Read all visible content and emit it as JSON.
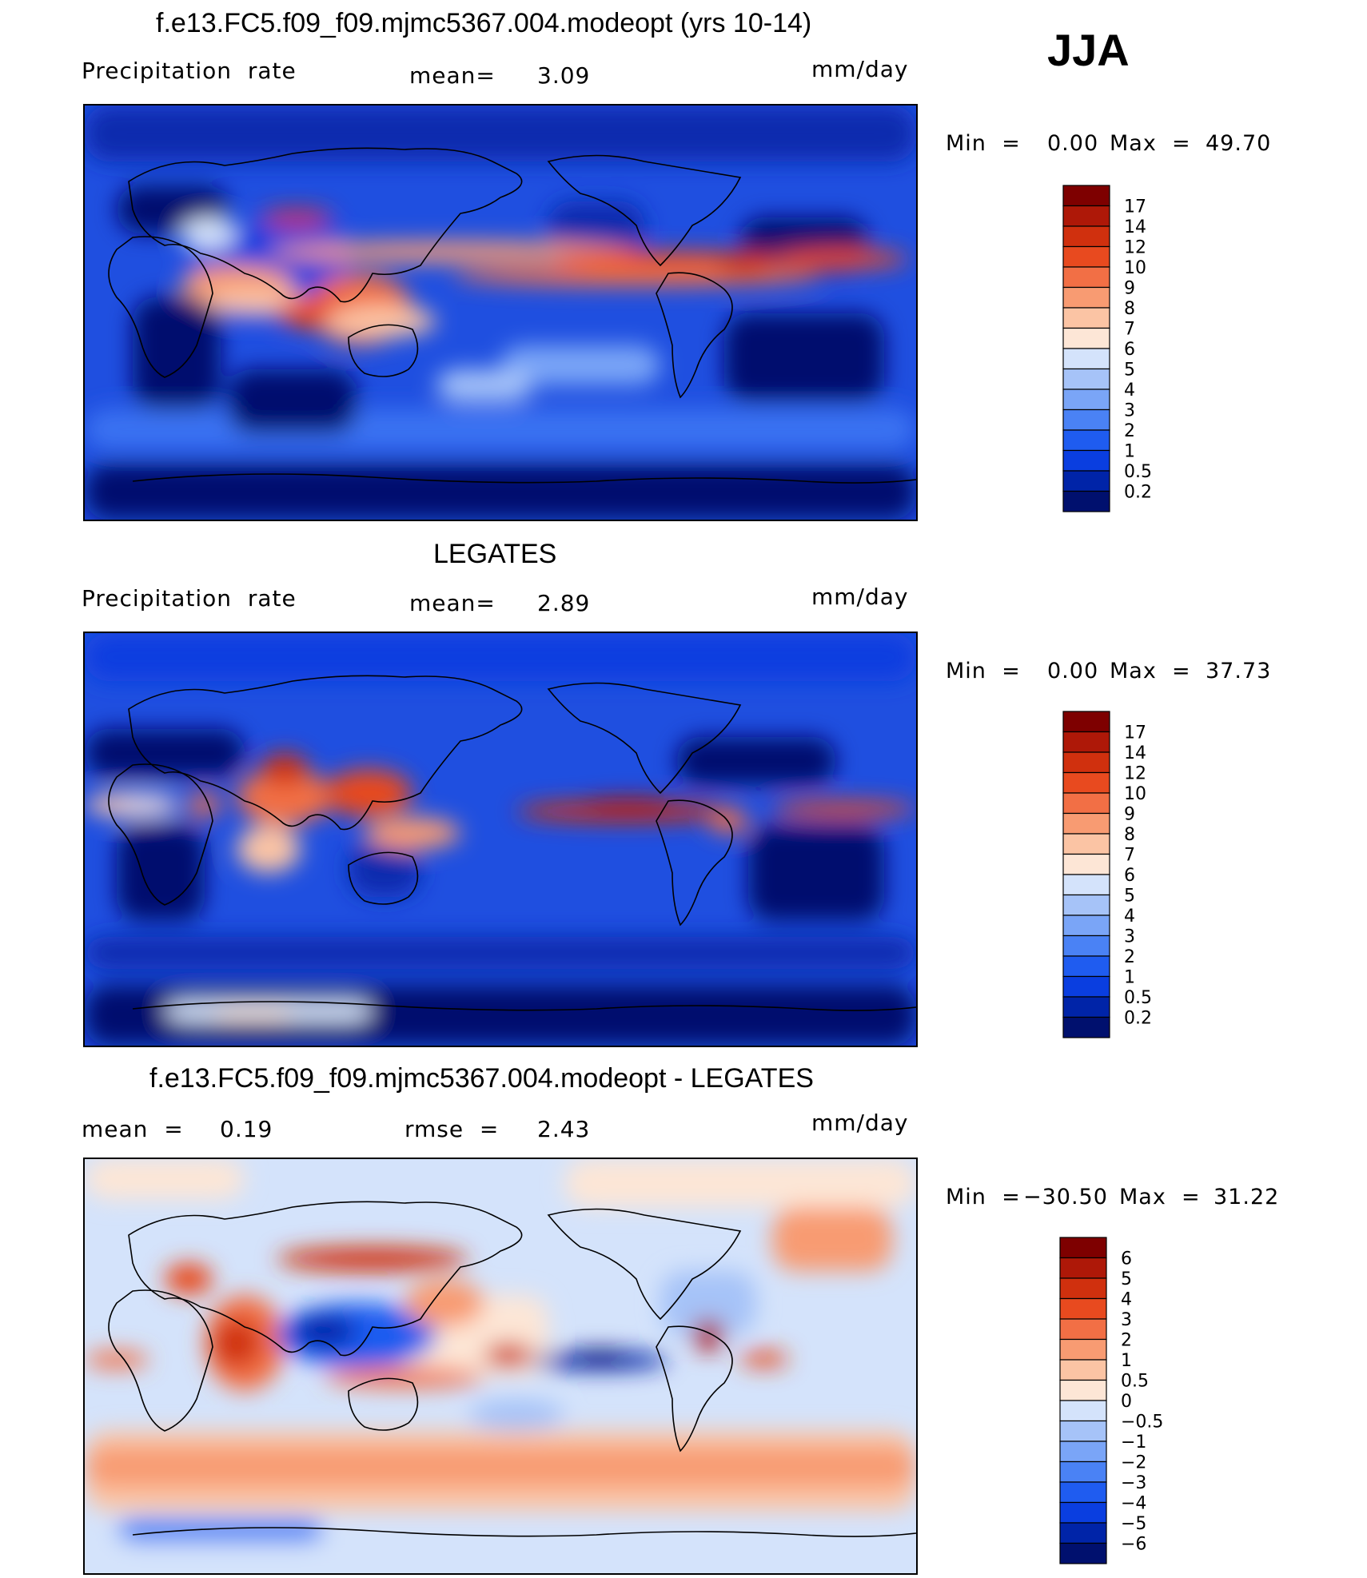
{
  "season": "JJA",
  "colors": {
    "abs_scale": [
      "#00106e",
      "#0024a8",
      "#0a3ee0",
      "#1f5cf0",
      "#4a82f5",
      "#7aa5f7",
      "#a6c3f8",
      "#d4e3fb",
      "#fde6d6",
      "#fbc4a4",
      "#f89b72",
      "#f26f45",
      "#e84a1f",
      "#d0300e",
      "#ae1808",
      "#7e0000"
    ],
    "diff_scale": [
      "#00106e",
      "#0024a8",
      "#0a3ee0",
      "#1f5cf0",
      "#4a82f5",
      "#7aa5f7",
      "#a6c3f8",
      "#d4e3fb",
      "#fde6d6",
      "#fbc4a4",
      "#f89b72",
      "#f26f45",
      "#e84a1f",
      "#d0300e",
      "#ae1808",
      "#7e0000"
    ]
  },
  "panels": [
    {
      "title": "f.e13.FC5.f09_f09.mjmc5367.004.modeopt (yrs 10-14)",
      "left_label": "Precipitation  rate",
      "center_label": "mean=",
      "center_value": "3.09",
      "units": "mm/day",
      "min_label": "Min  =",
      "min_value": "0.00",
      "max_label": "Max  =",
      "max_value": "49.70"
    },
    {
      "title": "LEGATES",
      "left_label": "Precipitation  rate",
      "center_label": "mean=",
      "center_value": "2.89",
      "units": "mm/day",
      "min_label": "Min  =",
      "min_value": "0.00",
      "max_label": "Max  =",
      "max_value": "37.73"
    },
    {
      "title": "f.e13.FC5.f09_f09.mjmc5367.004.modeopt - LEGATES",
      "left_label": "mean  =",
      "left_value": "0.19",
      "center_label": "rmse  =",
      "center_value": "2.43",
      "units": "mm/day",
      "min_label": "Min  =",
      "min_value": "−30.50",
      "max_label": "Max  =",
      "max_value": "31.22"
    }
  ],
  "chart_data": [
    {
      "type": "heatmap",
      "title": "f.e13.FC5.f09_f09.mjmc5367.004.modeopt (yrs 10-14)",
      "variable": "Precipitation rate",
      "units": "mm/day",
      "mean": 3.09,
      "min": 0.0,
      "max": 49.7,
      "colorbar_levels": [
        "17",
        "14",
        "12",
        "10",
        "9",
        "8",
        "7",
        "6",
        "5",
        "4",
        "3",
        "2",
        "1",
        "0.5",
        "0.2"
      ]
    },
    {
      "type": "heatmap",
      "title": "LEGATES",
      "variable": "Precipitation rate",
      "units": "mm/day",
      "mean": 2.89,
      "min": 0.0,
      "max": 37.73,
      "colorbar_levels": [
        "17",
        "14",
        "12",
        "10",
        "9",
        "8",
        "7",
        "6",
        "5",
        "4",
        "3",
        "2",
        "1",
        "0.5",
        "0.2"
      ]
    },
    {
      "type": "heatmap",
      "title": "f.e13.FC5.f09_f09.mjmc5367.004.modeopt - LEGATES",
      "units": "mm/day",
      "mean": 0.19,
      "rmse": 2.43,
      "min": -30.5,
      "max": 31.22,
      "colorbar_levels": [
        "6",
        "5",
        "4",
        "3",
        "2",
        "1",
        "0.5",
        "0",
        "−0.5",
        "−1",
        "−2",
        "−3",
        "−4",
        "−5",
        "−6"
      ]
    }
  ]
}
